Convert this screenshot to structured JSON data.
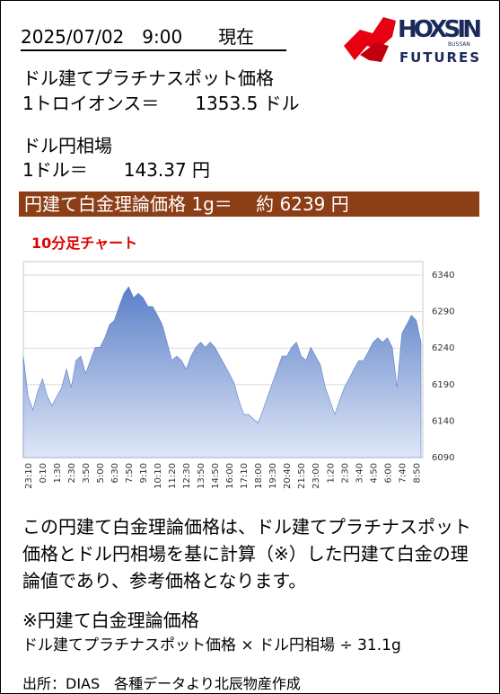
{
  "header": {
    "date": "2025/07/02　9:00　　現在"
  },
  "logo": {
    "name": "HOXSIN",
    "sub": "FUTURES",
    "tag": "BUSSAN"
  },
  "platinum": {
    "label": "ドル建てプラチナスポット価格",
    "value": "1トロイオンス＝　　1353.5 ドル"
  },
  "fx": {
    "label": "ドル円相場",
    "value": "1ドル＝　　143.37 円"
  },
  "result": "円建て白金理論価格 1g＝　 約 6239 円",
  "chart_data": {
    "type": "area",
    "title": "10分足チャート",
    "categories": [
      "23:10",
      null,
      null,
      "0:10",
      null,
      null,
      "1:30",
      null,
      null,
      "2:30",
      null,
      null,
      "3:50",
      null,
      null,
      "5:00",
      null,
      null,
      "6:30",
      null,
      null,
      "7:50",
      null,
      null,
      "9:10",
      null,
      null,
      "10:10",
      null,
      null,
      "11:20",
      null,
      null,
      "12:30",
      null,
      null,
      "13:50",
      null,
      null,
      "14:50",
      null,
      null,
      "16:00",
      null,
      null,
      "17:10",
      null,
      null,
      "18:00",
      null,
      null,
      "19:30",
      null,
      null,
      "20:40",
      null,
      null,
      "21:50",
      null,
      null,
      "23:00",
      null,
      null,
      "1:20",
      null,
      null,
      "2:30",
      null,
      null,
      "3:40",
      null,
      null,
      "4:50",
      null,
      null,
      "6:00",
      null,
      null,
      "7:40",
      null,
      null,
      "8:50",
      null,
      null
    ],
    "values": [
      6229,
      6174,
      6155,
      6180,
      6198,
      6174,
      6161,
      6174,
      6186,
      6211,
      6186,
      6223,
      6229,
      6205,
      6223,
      6241,
      6241,
      6254,
      6272,
      6278,
      6297,
      6315,
      6324,
      6309,
      6315,
      6309,
      6297,
      6297,
      6285,
      6272,
      6248,
      6223,
      6229,
      6223,
      6211,
      6229,
      6241,
      6248,
      6241,
      6248,
      6241,
      6229,
      6217,
      6205,
      6192,
      6168,
      6149,
      6149,
      6143,
      6137,
      6155,
      6174,
      6192,
      6211,
      6229,
      6229,
      6241,
      6248,
      6229,
      6223,
      6241,
      6229,
      6217,
      6186,
      6168,
      6149,
      6168,
      6186,
      6198,
      6211,
      6223,
      6223,
      6235,
      6248,
      6254,
      6248,
      6254,
      6241,
      6186,
      6260,
      6272,
      6285,
      6278,
      6248
    ],
    "color": "#5b7fc8",
    "ylim": [
      6090,
      6340
    ],
    "yticks": [
      6090,
      6140,
      6190,
      6240,
      6290,
      6340
    ],
    "grid": true
  },
  "note": {
    "text": "この円建て白金理論価格は、ドル建てプラチナスポット価格とドル円相場を基に計算（※）した円建て白金の理論値であり、参考価格となります。",
    "formula_title": "※円建て白金理論価格",
    "formula": "ドル建てプラチナスポット価格 × ドル円相場 ÷ 31.1g"
  },
  "source": "出所：DIAS　各種データより北辰物産作成"
}
